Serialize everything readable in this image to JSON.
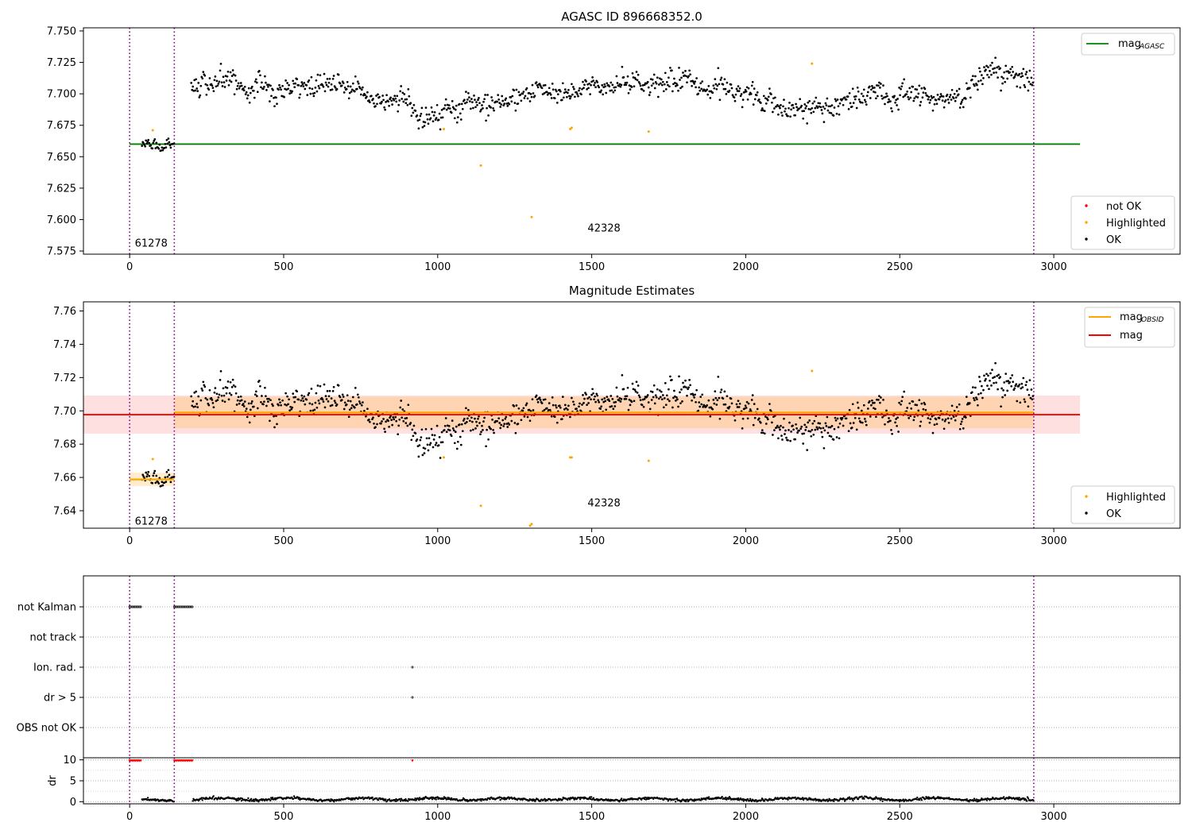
{
  "chart_data": [
    {
      "id": "agasc",
      "type": "scatter",
      "title": "AGASC ID 896668352.0",
      "xlabel": "",
      "ylabel": "",
      "xlim": [
        -150,
        3410
      ],
      "ylim": [
        7.5725,
        7.7525
      ],
      "xticks": [
        0,
        500,
        1000,
        1500,
        2000,
        2500,
        3000
      ],
      "xtick_labels": [
        "0",
        "500",
        "1000",
        "1500",
        "2000",
        "2500",
        "3000"
      ],
      "yticks": [
        7.575,
        7.6,
        7.625,
        7.65,
        7.675,
        7.7,
        7.725,
        7.75
      ],
      "ytick_labels": [
        "7.575",
        "7.600",
        "7.625",
        "7.650",
        "7.675",
        "7.700",
        "7.725",
        "7.750"
      ],
      "obsid_boundaries": [
        0,
        145,
        2935
      ],
      "obsid_labels": [
        {
          "text": "61278",
          "x": 70,
          "y": 7.581
        },
        {
          "text": "42328",
          "x": 1540,
          "y": 7.593
        }
      ],
      "lines": [
        {
          "name": "mag$_{AGASC}$",
          "label_main": "mag",
          "label_sub": "AGASC",
          "color": "#008000",
          "y": 7.66,
          "x": [
            0,
            3085
          ]
        }
      ],
      "highlighted_points": [
        [
          75,
          7.671
        ],
        [
          1020,
          7.672
        ],
        [
          1140,
          7.643
        ],
        [
          1305,
          7.602
        ],
        [
          1430,
          7.672
        ],
        [
          1435,
          7.673
        ],
        [
          1685,
          7.67
        ],
        [
          2215,
          7.724
        ]
      ],
      "ok_series": {
        "name": "OK",
        "segments": [
          {
            "x_range": [
              40,
              145
            ],
            "base": 7.659,
            "amplitude": 0.006
          },
          {
            "x_range": [
              200,
              2935
            ],
            "base": 7.7,
            "amplitude": 0.012
          }
        ]
      },
      "legend": {
        "upper_right": [
          {
            "label_main": "mag",
            "label_sub": "AGASC",
            "color": "#008000"
          }
        ],
        "lower_right": [
          {
            "label": "not OK",
            "color": "#ff0000"
          },
          {
            "label": "Highlighted",
            "color": "#ffa500"
          },
          {
            "label": "OK",
            "color": "#000000"
          }
        ]
      },
      "colors": {
        "boundary": "#800080",
        "highlighted": "#ffa500",
        "ok": "#000000"
      }
    },
    {
      "id": "estimates",
      "type": "scatter",
      "title": "Magnitude Estimates",
      "xlabel": "",
      "ylabel": "",
      "xlim": [
        -150,
        3410
      ],
      "ylim": [
        7.6295,
        7.7655
      ],
      "xticks": [
        0,
        500,
        1000,
        1500,
        2000,
        2500,
        3000
      ],
      "xtick_labels": [
        "0",
        "500",
        "1000",
        "1500",
        "2000",
        "2500",
        "3000"
      ],
      "yticks": [
        7.64,
        7.66,
        7.68,
        7.7,
        7.72,
        7.74,
        7.76
      ],
      "ytick_labels": [
        "7.64",
        "7.66",
        "7.68",
        "7.70",
        "7.72",
        "7.74",
        "7.76"
      ],
      "obsid_boundaries": [
        0,
        145,
        2935
      ],
      "obsid_labels": [
        {
          "text": "61278",
          "x": 70,
          "y": 7.6335
        },
        {
          "text": "42328",
          "x": 1540,
          "y": 7.6445
        }
      ],
      "mag_band": {
        "y": 7.6977,
        "lower": 7.6863,
        "upper": 7.7092,
        "x": [
          -150,
          3085
        ],
        "color": "#ff0000"
      },
      "obsid_mag": [
        {
          "x": [
            0,
            145
          ],
          "y": 7.6588,
          "lower": 7.6548,
          "upper": 7.6628
        },
        {
          "x": [
            145,
            2935
          ],
          "y": 7.699,
          "lower": 7.6895,
          "upper": 7.7085
        }
      ],
      "highlighted_points": [
        [
          75,
          7.671
        ],
        [
          1020,
          7.672
        ],
        [
          1140,
          7.643
        ],
        [
          1300,
          7.631
        ],
        [
          1305,
          7.632
        ],
        [
          1430,
          7.672
        ],
        [
          1435,
          7.672
        ],
        [
          1685,
          7.67
        ],
        [
          2215,
          7.724
        ]
      ],
      "ok_series": {
        "name": "OK",
        "segments": [
          {
            "x_range": [
              40,
              145
            ],
            "base": 7.659,
            "amplitude": 0.006
          },
          {
            "x_range": [
              200,
              2935
            ],
            "base": 7.7,
            "amplitude": 0.012
          }
        ]
      },
      "legend": {
        "upper_right": [
          {
            "label_main": "mag",
            "label_sub": "OBSID",
            "color": "#ffa500"
          },
          {
            "label_main": "mag",
            "label_sub": "",
            "color": "#ff0000"
          }
        ],
        "lower_right": [
          {
            "label": "Highlighted",
            "color": "#ffa500"
          },
          {
            "label": "OK",
            "color": "#000000"
          }
        ]
      },
      "colors": {
        "boundary": "#800080",
        "highlighted": "#ffa500",
        "ok": "#000000",
        "mag": "#ff0000",
        "obsid": "#ffa500"
      }
    },
    {
      "id": "flags",
      "type": "scatter",
      "title": "",
      "xlim": [
        -150,
        3410
      ],
      "categories": [
        "not Kalman",
        "not track",
        "Ion. rad.",
        "dr > 5",
        "OBS not OK"
      ],
      "obsid_boundaries": [
        0,
        145,
        2935
      ],
      "flag_points": [
        {
          "category": "not Kalman",
          "x_ranges": [
            [
              0,
              40
            ],
            [
              145,
              205
            ]
          ]
        },
        {
          "category": "not track",
          "x_ranges": []
        },
        {
          "category": "Ion. rad.",
          "x_ranges": [
            [
              918,
              919
            ]
          ]
        },
        {
          "category": "dr > 5",
          "x_ranges": [
            [
              918,
              919
            ]
          ]
        },
        {
          "category": "OBS not OK",
          "x_ranges": []
        }
      ],
      "colors": {
        "boundary": "#800080",
        "points": "#000000"
      }
    },
    {
      "id": "dr",
      "type": "scatter",
      "ylabel": "dr",
      "xlim": [
        -150,
        3410
      ],
      "ylim": [
        -0.5,
        10.5
      ],
      "xticks": [
        0,
        500,
        1000,
        1500,
        2000,
        2500,
        3000
      ],
      "xtick_labels": [
        "0",
        "500",
        "1000",
        "1500",
        "2000",
        "2500",
        "3000"
      ],
      "yticks": [
        0,
        5,
        10
      ],
      "ytick_labels": [
        "0",
        "5",
        "10"
      ],
      "obsid_boundaries": [
        0,
        145,
        2935
      ],
      "clipped_points": [
        {
          "x_range": [
            0,
            40
          ],
          "y": 9.8,
          "color": "#ff0000"
        },
        {
          "x_range": [
            145,
            205
          ],
          "y": 9.8,
          "color": "#ff0000"
        },
        {
          "x_range": [
            918,
            919
          ],
          "y": 9.8,
          "color": "#ff0000"
        }
      ],
      "dr_series": [
        {
          "x_range": [
            40,
            145
          ],
          "base": 0.3,
          "amplitude": 0.35
        },
        {
          "x_range": [
            205,
            2935
          ],
          "base": 0.6,
          "amplitude": 0.45
        }
      ],
      "colors": {
        "boundary": "#800080",
        "points": "#000000",
        "clipped": "#ff0000"
      }
    }
  ]
}
